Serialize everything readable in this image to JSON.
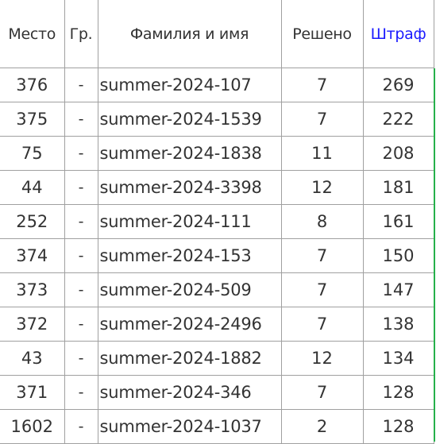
{
  "headers": {
    "place": "Место",
    "group": "Гр.",
    "name": "Фамилия и имя",
    "solved": "Решено",
    "penalty": "Штраф"
  },
  "rows": [
    {
      "place": "376",
      "group": "-",
      "name": "summer-2024-107",
      "solved": "7",
      "penalty": "269"
    },
    {
      "place": "375",
      "group": "-",
      "name": "summer-2024-1539",
      "solved": "7",
      "penalty": "222"
    },
    {
      "place": "75",
      "group": "-",
      "name": "summer-2024-1838",
      "solved": "11",
      "penalty": "208"
    },
    {
      "place": "44",
      "group": "-",
      "name": "summer-2024-3398",
      "solved": "12",
      "penalty": "181"
    },
    {
      "place": "252",
      "group": "-",
      "name": "summer-2024-111",
      "solved": "8",
      "penalty": "161"
    },
    {
      "place": "374",
      "group": "-",
      "name": "summer-2024-153",
      "solved": "7",
      "penalty": "150"
    },
    {
      "place": "373",
      "group": "-",
      "name": "summer-2024-509",
      "solved": "7",
      "penalty": "147"
    },
    {
      "place": "372",
      "group": "-",
      "name": "summer-2024-2496",
      "solved": "7",
      "penalty": "138"
    },
    {
      "place": "43",
      "group": "-",
      "name": "summer-2024-1882",
      "solved": "12",
      "penalty": "134"
    },
    {
      "place": "371",
      "group": "-",
      "name": "summer-2024-346",
      "solved": "7",
      "penalty": "128"
    },
    {
      "place": "1602",
      "group": "-",
      "name": "summer-2024-1037",
      "solved": "2",
      "penalty": "128"
    }
  ],
  "colors": {
    "sorted_header": "#1a1aff",
    "grid": "#a0a0a0",
    "text": "#333333",
    "edge_accent": "#25b04a"
  }
}
